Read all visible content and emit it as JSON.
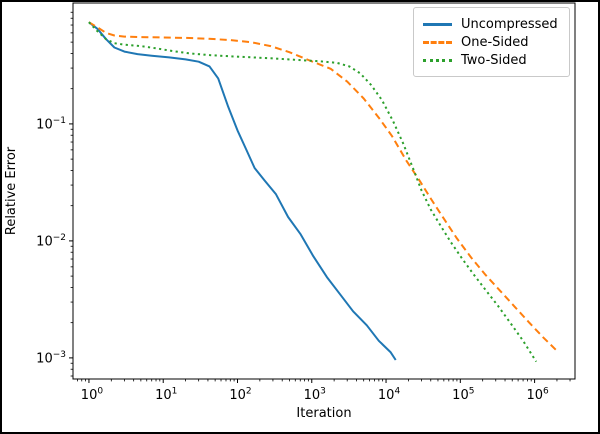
{
  "figure": {
    "background": "#ffffff",
    "frame_color": "#000000"
  },
  "chart_data": {
    "type": "line",
    "title": "",
    "xlabel": "Iteration",
    "ylabel": "Relative Error",
    "x_scale": "log",
    "y_scale": "log",
    "xlim": [
      0.61,
      3500000
    ],
    "ylim": [
      0.00066,
      1.08
    ],
    "x_tick_exponents": [
      0,
      1,
      2,
      3,
      4,
      5,
      6
    ],
    "y_tick_exponents": [
      -1,
      -2,
      -3
    ],
    "grid": false,
    "legend": {
      "position": "upper-right",
      "border_color": "#c9c9c9",
      "background": "#ffffff"
    },
    "axis_color": "#000000",
    "series": [
      {
        "name": "Uncompressed",
        "color": "#1f77b4",
        "style": "solid",
        "points": [
          [
            1,
            0.74
          ],
          [
            1.3,
            0.65
          ],
          [
            1.7,
            0.53
          ],
          [
            2.2,
            0.45
          ],
          [
            3,
            0.415
          ],
          [
            4.5,
            0.395
          ],
          [
            7,
            0.383
          ],
          [
            12,
            0.37
          ],
          [
            20,
            0.356
          ],
          [
            30,
            0.34
          ],
          [
            42,
            0.31
          ],
          [
            55,
            0.245
          ],
          [
            75,
            0.14
          ],
          [
            100,
            0.088
          ],
          [
            130,
            0.061
          ],
          [
            170,
            0.042
          ],
          [
            230,
            0.033
          ],
          [
            330,
            0.025
          ],
          [
            480,
            0.016
          ],
          [
            700,
            0.0115
          ],
          [
            1050,
            0.0074
          ],
          [
            1600,
            0.0049
          ],
          [
            2400,
            0.0035
          ],
          [
            3600,
            0.0025
          ],
          [
            5500,
            0.0019
          ],
          [
            8000,
            0.0014
          ],
          [
            11500,
            0.00112
          ],
          [
            13500,
            0.00096
          ]
        ]
      },
      {
        "name": "One-Sided",
        "color": "#ff7f0e",
        "style": "dashed",
        "points": [
          [
            1,
            0.74
          ],
          [
            1.3,
            0.67
          ],
          [
            1.7,
            0.6
          ],
          [
            2.2,
            0.57
          ],
          [
            3,
            0.558
          ],
          [
            5,
            0.552
          ],
          [
            10,
            0.548
          ],
          [
            20,
            0.543
          ],
          [
            40,
            0.535
          ],
          [
            80,
            0.52
          ],
          [
            150,
            0.5
          ],
          [
            280,
            0.462
          ],
          [
            500,
            0.41
          ],
          [
            900,
            0.352
          ],
          [
            1800,
            0.296
          ],
          [
            3000,
            0.23
          ],
          [
            5000,
            0.165
          ],
          [
            8000,
            0.113
          ],
          [
            12000,
            0.079
          ],
          [
            19000,
            0.048
          ],
          [
            28000,
            0.033
          ],
          [
            40000,
            0.023
          ],
          [
            60000,
            0.0155
          ],
          [
            90000,
            0.0105
          ],
          [
            140000,
            0.0072
          ],
          [
            220000,
            0.0051
          ],
          [
            350000,
            0.0037
          ],
          [
            550000,
            0.0027
          ],
          [
            850000,
            0.002
          ],
          [
            1300000,
            0.0015
          ],
          [
            2000000,
            0.00115
          ]
        ]
      },
      {
        "name": "Two-Sided",
        "color": "#2ca02c",
        "style": "dotted",
        "points": [
          [
            1,
            0.74
          ],
          [
            1.3,
            0.62
          ],
          [
            1.7,
            0.53
          ],
          [
            2.2,
            0.49
          ],
          [
            3,
            0.475
          ],
          [
            5,
            0.462
          ],
          [
            8,
            0.443
          ],
          [
            13,
            0.421
          ],
          [
            22,
            0.401
          ],
          [
            40,
            0.388
          ],
          [
            80,
            0.378
          ],
          [
            160,
            0.37
          ],
          [
            320,
            0.362
          ],
          [
            650,
            0.352
          ],
          [
            1300,
            0.343
          ],
          [
            2200,
            0.332
          ],
          [
            3200,
            0.31
          ],
          [
            4500,
            0.27
          ],
          [
            6300,
            0.215
          ],
          [
            8800,
            0.16
          ],
          [
            12500,
            0.105
          ],
          [
            17000,
            0.068
          ],
          [
            23000,
            0.042
          ],
          [
            30000,
            0.027
          ],
          [
            40000,
            0.0185
          ],
          [
            55000,
            0.0133
          ],
          [
            75000,
            0.0097
          ],
          [
            105000,
            0.0071
          ],
          [
            150000,
            0.0052
          ],
          [
            220000,
            0.0038
          ],
          [
            320000,
            0.0028
          ],
          [
            470000,
            0.002
          ],
          [
            700000,
            0.0014
          ],
          [
            1050000,
            0.00093
          ]
        ]
      }
    ]
  }
}
